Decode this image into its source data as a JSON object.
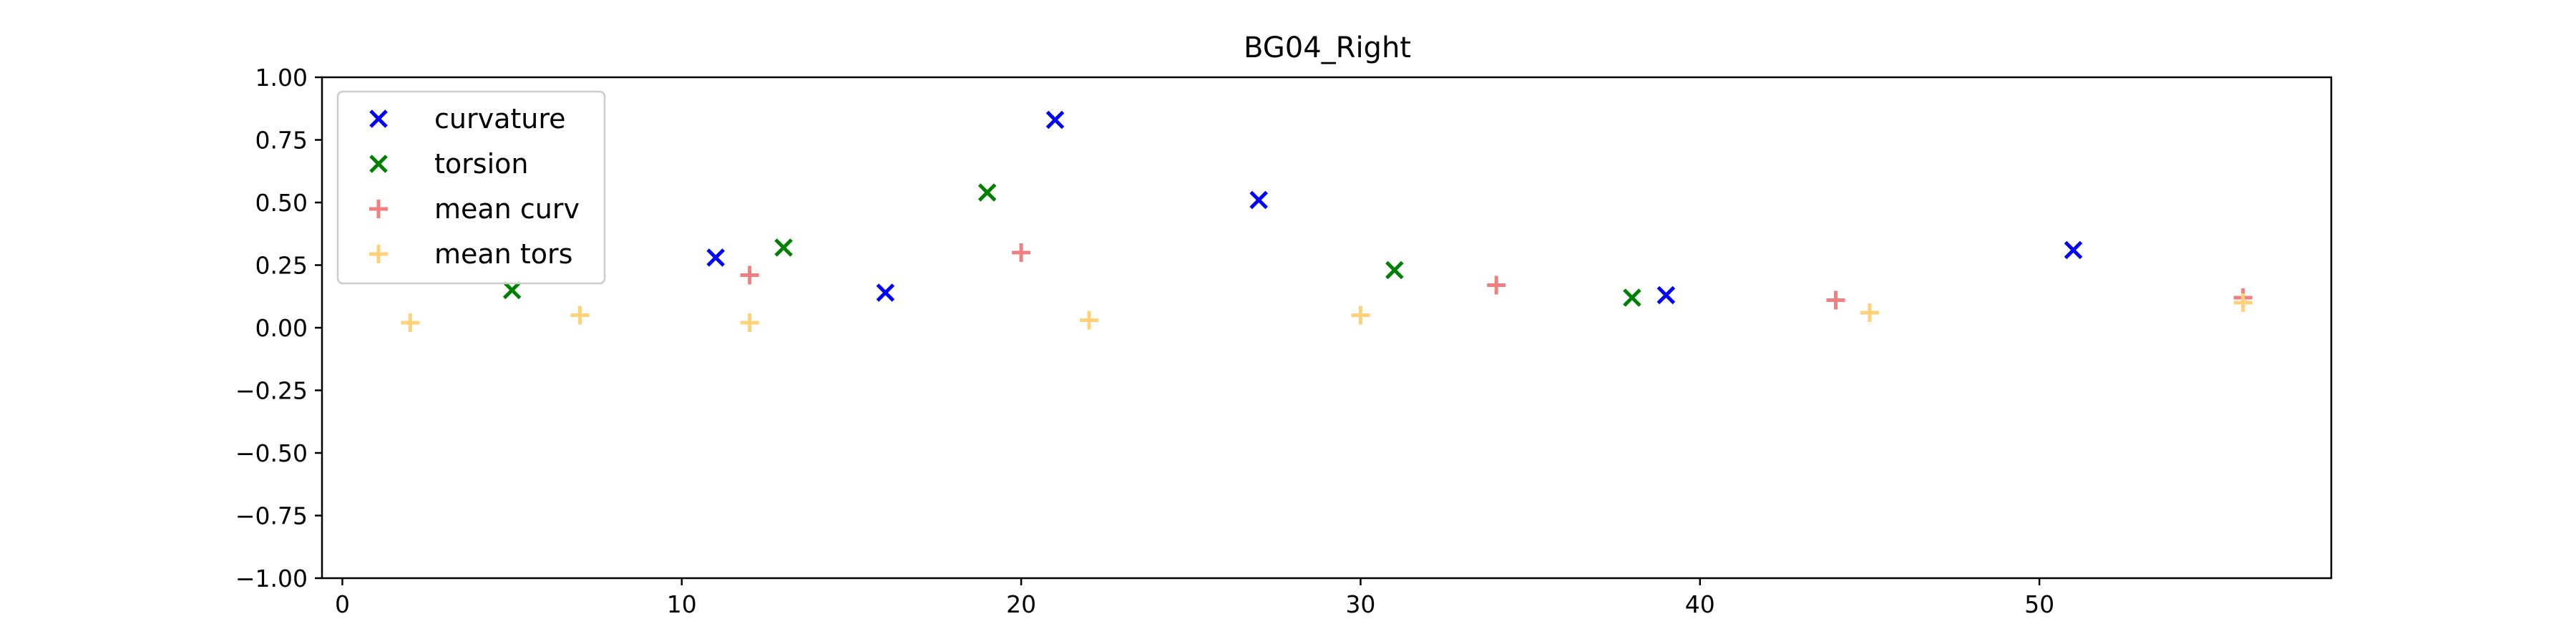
{
  "chart_data": {
    "type": "scatter",
    "title": "BG04_Right",
    "xlabel": "",
    "ylabel": "",
    "xlim": [
      -0.6,
      58.6
    ],
    "ylim": [
      -1.0,
      1.0
    ],
    "x_ticks": [
      0,
      10,
      20,
      30,
      40,
      50
    ],
    "x_tick_labels": [
      "0",
      "10",
      "20",
      "30",
      "40",
      "50"
    ],
    "y_ticks": [
      1.0,
      0.75,
      0.5,
      0.25,
      0.0,
      -0.25,
      -0.5,
      -0.75,
      -1.0
    ],
    "y_tick_labels": [
      "1.00",
      "0.75",
      "0.50",
      "0.25",
      "0.00",
      "−0.25",
      "−0.50",
      "−0.75",
      "−1.00"
    ],
    "grid": false,
    "legend": {
      "placement": "top-left"
    },
    "series": [
      {
        "name": "curvature",
        "marker": "x",
        "color": "#0000ff",
        "x": [
          11,
          16,
          21,
          27,
          39,
          51
        ],
        "y": [
          0.28,
          0.14,
          0.83,
          0.51,
          0.13,
          0.31
        ]
      },
      {
        "name": "torsion",
        "marker": "x",
        "color": "#008000",
        "x": [
          5,
          13,
          19,
          31,
          38
        ],
        "y": [
          0.15,
          0.32,
          0.54,
          0.23,
          0.12
        ]
      },
      {
        "name": "mean curv",
        "marker": "+",
        "color": "#f08080",
        "x": [
          12,
          20,
          34,
          44,
          56
        ],
        "y": [
          0.21,
          0.3,
          0.17,
          0.11,
          0.12
        ]
      },
      {
        "name": "mean tors",
        "marker": "+",
        "color": "#ffd27a",
        "x": [
          2,
          7,
          12,
          22,
          30,
          45,
          56
        ],
        "y": [
          0.02,
          0.05,
          0.02,
          0.03,
          0.05,
          0.06,
          0.1
        ]
      }
    ]
  }
}
